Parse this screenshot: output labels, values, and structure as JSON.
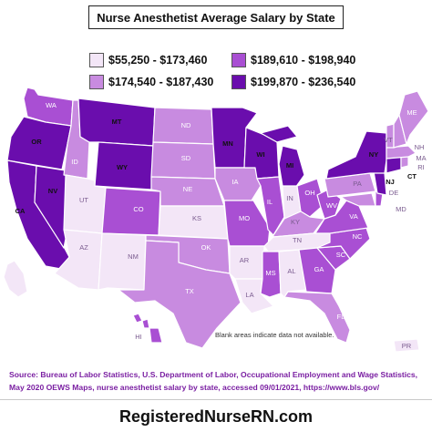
{
  "title": "Nurse Anesthetist Average Salary by State",
  "legend": [
    {
      "label": "$55,250 - $173,460",
      "color": "#f3e6f7"
    },
    {
      "label": "$174,540 - $187,430",
      "color": "#c88be0"
    },
    {
      "label": "$189,610 - $198,940",
      "color": "#a94fd3"
    },
    {
      "label": "$199,870 - $236,540",
      "color": "#6a0dad"
    }
  ],
  "states": {
    "WA": {
      "bin": 2
    },
    "OR": {
      "bin": 3
    },
    "CA": {
      "bin": 3
    },
    "NV": {
      "bin": 3
    },
    "ID": {
      "bin": 1
    },
    "MT": {
      "bin": 3
    },
    "WY": {
      "bin": 3
    },
    "UT": {
      "bin": 0
    },
    "AZ": {
      "bin": 0
    },
    "CO": {
      "bin": 2
    },
    "NM": {
      "bin": 0
    },
    "ND": {
      "bin": 1
    },
    "SD": {
      "bin": 1
    },
    "NE": {
      "bin": 1
    },
    "KS": {
      "bin": 0
    },
    "OK": {
      "bin": 1
    },
    "TX": {
      "bin": 1
    },
    "MN": {
      "bin": 3
    },
    "IA": {
      "bin": 1
    },
    "MO": {
      "bin": 2
    },
    "AR": {
      "bin": 0
    },
    "LA": {
      "bin": 0
    },
    "WI": {
      "bin": 3
    },
    "IL": {
      "bin": 2
    },
    "MI": {
      "bin": 3
    },
    "IN": {
      "bin": 0
    },
    "OH": {
      "bin": 2
    },
    "KY": {
      "bin": 1
    },
    "TN": {
      "bin": 0
    },
    "MS": {
      "bin": 2
    },
    "AL": {
      "bin": 0
    },
    "GA": {
      "bin": 2
    },
    "FL": {
      "bin": 1
    },
    "SC": {
      "bin": 2
    },
    "NC": {
      "bin": 2
    },
    "VA": {
      "bin": 2
    },
    "WV": {
      "bin": 2
    },
    "PA": {
      "bin": 1
    },
    "NY": {
      "bin": 3
    },
    "NJ": {
      "bin": 3
    },
    "DE": {
      "bin": 2
    },
    "MD": {
      "bin": 1
    },
    "CT": {
      "bin": 3
    },
    "RI": {
      "bin": 1
    },
    "MA": {
      "bin": 1
    },
    "VT": {
      "bin": 1
    },
    "NH": {
      "bin": 1
    },
    "ME": {
      "bin": 1
    },
    "AK": {
      "bin": 0
    },
    "HI": {
      "bin": 2
    },
    "PR": {
      "bin": 0
    }
  },
  "labels": {
    "WA": "WA",
    "OR": "OR",
    "CA": "CA",
    "NV": "NV",
    "ID": "ID",
    "MT": "MT",
    "WY": "WY",
    "UT": "UT",
    "AZ": "AZ",
    "CO": "CO",
    "NM": "NM",
    "ND": "ND",
    "SD": "SD",
    "NE": "NE",
    "KS": "KS",
    "OK": "OK",
    "TX": "TX",
    "MN": "MN",
    "IA": "IA",
    "MO": "MO",
    "AR": "AR",
    "LA": "LA",
    "WI": "WI",
    "IL": "IL",
    "MI": "MI",
    "IN": "IN",
    "OH": "OH",
    "KY": "KY",
    "TN": "TN",
    "MS": "MS",
    "AL": "AL",
    "GA": "GA",
    "FL": "FL",
    "SC": "SC",
    "NC": "NC",
    "VA": "VA",
    "WV": "WV",
    "PA": "PA",
    "NY": "NY",
    "NJ": "NJ",
    "DE": "DE",
    "MD": "MD",
    "CT": "CT",
    "RI": "RI",
    "MA": "MA",
    "VT": "VT",
    "NH": "NH",
    "ME": "ME",
    "HI": "HI",
    "PR": "PR"
  },
  "note": "Blank areas indicate data not available.",
  "source": "Source: Bureau of Labor Statistics, U.S. Department of Labor, Occupational Employment and Wage Statistics, May 2020  OEWS Maps,  nurse anesthetist  salary by state, accessed 09/01/2021, https://www.bls.gov/",
  "footer": "RegisteredNurseRN.com"
}
